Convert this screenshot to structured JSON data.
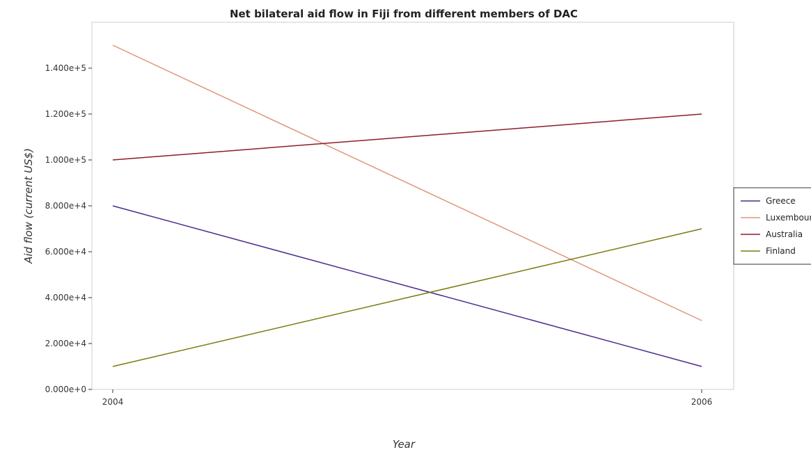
{
  "chart_data": {
    "type": "line",
    "title": "Net bilateral aid flow in Fiji from different members of DAC",
    "xlabel": "Year",
    "ylabel": "Aid flow (current US$)",
    "categories": [
      "2004",
      "2006"
    ],
    "ylim": [
      0,
      160000
    ],
    "yticks": [
      0,
      20000,
      40000,
      60000,
      80000,
      100000,
      120000,
      140000
    ],
    "ytick_labels": [
      "0.000e+0",
      "2.000e+4",
      "4.000e+4",
      "6.000e+4",
      "8.000e+4",
      "1.000e+5",
      "1.200e+5",
      "1.400e+5"
    ],
    "legend_position": "right",
    "grid": false,
    "series": [
      {
        "name": "Greece",
        "color": "#4b2a8c",
        "values": [
          80000,
          10000
        ]
      },
      {
        "name": "Luxembourg",
        "color": "#e0957a",
        "values": [
          150000,
          30000
        ]
      },
      {
        "name": "Australia",
        "color": "#8b1c2b",
        "values": [
          100000,
          120000
        ]
      },
      {
        "name": "Finland",
        "color": "#7a7a10",
        "values": [
          10000,
          70000
        ]
      }
    ]
  }
}
